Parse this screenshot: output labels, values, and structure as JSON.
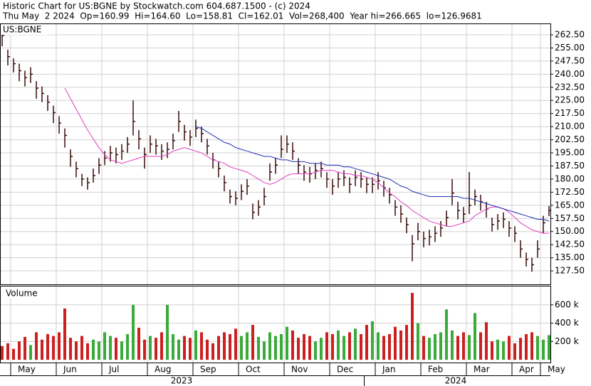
{
  "chart_data": [
    {
      "type": "ohlc",
      "title": "Historic Chart for US:BGNE by Stockwatch.com 604.687.1500 - (c) 2024",
      "subtitle": "Thu May  2 2024  Op=160.99  Hi=164.60  Lo=158.81  Cl=162.01  Vol=268,400  Year hi=266.665  lo=126.9681",
      "label": "US:BGNE",
      "color": "#3a0a0a",
      "categories": [
        null,
        null,
        "May",
        null,
        null,
        null,
        null,
        null,
        null,
        null,
        "Jun",
        null,
        null,
        null,
        null,
        null,
        null,
        null,
        "Jul",
        null,
        null,
        null,
        null,
        null,
        null,
        null,
        "Aug",
        null,
        null,
        null,
        null,
        null,
        null,
        null,
        "Sep",
        null,
        null,
        null,
        null,
        null,
        null,
        null,
        "Oct",
        null,
        null,
        null,
        null,
        null,
        null,
        null,
        "Nov",
        null,
        null,
        null,
        null,
        null,
        null,
        null,
        "Dec",
        null,
        null,
        null,
        null,
        null,
        null,
        null,
        "Jan",
        null,
        null,
        null,
        null,
        null,
        null,
        null,
        "Feb",
        null,
        null,
        null,
        null,
        null,
        null,
        null,
        "Mar",
        null,
        null,
        null,
        null,
        null,
        null,
        null,
        "Apr",
        null,
        null,
        null,
        null,
        "May",
        null
      ],
      "high": [
        266,
        254,
        249,
        246,
        242,
        244,
        236,
        233,
        228,
        222,
        216,
        209,
        197,
        190,
        183,
        181,
        186,
        192,
        196,
        199,
        198,
        200,
        204,
        225,
        208,
        198,
        205,
        203,
        200,
        201,
        206,
        219,
        211,
        208,
        214,
        210,
        203,
        195,
        190,
        182,
        174,
        173,
        177,
        180,
        166,
        168,
        175,
        189,
        192,
        205,
        205,
        201,
        192,
        188,
        187,
        189,
        190,
        184,
        180,
        184,
        185,
        181,
        185,
        184,
        181,
        181,
        184,
        179,
        175,
        168,
        165,
        158,
        148,
        155,
        150,
        151,
        153,
        156,
        162,
        180,
        167,
        164,
        184,
        174,
        171,
        167,
        158,
        160,
        161,
        156,
        153,
        145,
        138,
        135,
        145,
        159,
        164.6
      ],
      "low": [
        256,
        245,
        241,
        236,
        233,
        235,
        226,
        224,
        219,
        212,
        206,
        198,
        187,
        181,
        176,
        174,
        178,
        183,
        188,
        190,
        189,
        191,
        195,
        205,
        197,
        186,
        195,
        194,
        191,
        192,
        197,
        207,
        202,
        199,
        204,
        201,
        194,
        186,
        181,
        173,
        166,
        165,
        168,
        171,
        157,
        159,
        165,
        179,
        183,
        192,
        195,
        191,
        183,
        179,
        178,
        180,
        181,
        175,
        171,
        175,
        176,
        172,
        176,
        175,
        172,
        172,
        174,
        170,
        166,
        159,
        155,
        149,
        133,
        145,
        141,
        142,
        144,
        147,
        153,
        165,
        157,
        155,
        160,
        165,
        162,
        158,
        150,
        151,
        152,
        147,
        144,
        135,
        130,
        127,
        135,
        149,
        158.81
      ],
      "close": [
        262,
        250,
        246,
        242,
        238,
        240,
        232,
        229,
        224,
        218,
        212,
        205,
        193,
        186,
        180,
        178,
        182,
        188,
        192,
        195,
        194,
        196,
        200,
        213,
        203,
        194,
        200,
        199,
        196,
        197,
        202,
        213,
        207,
        204,
        209,
        206,
        199,
        191,
        186,
        178,
        170,
        169,
        173,
        176,
        161,
        164,
        170,
        184,
        188,
        197,
        200,
        196,
        188,
        184,
        183,
        185,
        186,
        180,
        176,
        180,
        181,
        177,
        181,
        180,
        177,
        177,
        179,
        175,
        171,
        164,
        160,
        154,
        143,
        150,
        146,
        147,
        149,
        152,
        158,
        172,
        162,
        160,
        165,
        170,
        167,
        163,
        154,
        156,
        157,
        152,
        149,
        140,
        134,
        131,
        140,
        155,
        162.01
      ],
      "lines": [
        {
          "color": "#e040c0",
          "values": [
            null,
            null,
            null,
            null,
            null,
            null,
            null,
            null,
            null,
            null,
            null,
            232,
            226,
            220,
            214,
            208,
            203,
            198,
            194,
            191,
            190,
            189,
            190,
            191,
            192,
            193,
            193,
            193,
            193,
            194,
            196,
            197,
            198,
            197,
            196,
            195,
            193,
            191,
            190,
            189,
            187,
            186,
            185,
            184,
            182,
            180,
            178,
            177,
            178,
            180,
            182,
            183,
            183,
            183,
            183,
            184,
            185,
            185,
            185,
            184,
            183,
            183,
            182,
            182,
            181,
            180,
            178,
            175,
            172,
            170,
            167,
            165,
            162,
            160,
            158,
            156,
            155,
            154,
            153,
            153,
            154,
            155,
            156,
            159,
            161,
            163,
            164,
            164,
            163,
            161,
            158,
            155,
            153,
            151,
            150,
            149,
            149
          ]
        },
        {
          "color": "#2030b0",
          "values": [
            null,
            null,
            null,
            null,
            null,
            null,
            null,
            null,
            null,
            null,
            null,
            null,
            null,
            null,
            null,
            null,
            null,
            null,
            null,
            null,
            null,
            null,
            null,
            null,
            null,
            null,
            null,
            null,
            null,
            null,
            null,
            null,
            null,
            null,
            210,
            209,
            207,
            205,
            203,
            201,
            200,
            198,
            197,
            196,
            195,
            194,
            193,
            193,
            192,
            191,
            191,
            190,
            190,
            190,
            189,
            189,
            189,
            188,
            188,
            188,
            187,
            187,
            186,
            185,
            184,
            183,
            182,
            181,
            180,
            178,
            176,
            175,
            173,
            172,
            171,
            170,
            170,
            170,
            170,
            170,
            170,
            169,
            169,
            168,
            167,
            166,
            165,
            164,
            163,
            162,
            161,
            160,
            159,
            158,
            157,
            157,
            156
          ]
        }
      ],
      "ylim": [
        119.8,
        268.6
      ],
      "yticks": [
        {
          "value": 127.5,
          "label": "127.50"
        },
        {
          "value": 135,
          "label": "135.00"
        },
        {
          "value": 142.5,
          "label": "142.50"
        },
        {
          "value": 150,
          "label": "150.00"
        },
        {
          "value": 157.5,
          "label": "157.50"
        },
        {
          "value": 165,
          "label": "165.00"
        },
        {
          "value": 172.5,
          "label": "172.50"
        },
        {
          "value": 180,
          "label": "180.00"
        },
        {
          "value": 187.5,
          "label": "187.50"
        },
        {
          "value": 195,
          "label": "195.00"
        },
        {
          "value": 202.5,
          "label": "202.50"
        },
        {
          "value": 210,
          "label": "210.00"
        },
        {
          "value": 217.5,
          "label": "217.50"
        },
        {
          "value": 225,
          "label": "225.00"
        },
        {
          "value": 232.5,
          "label": "232.50"
        },
        {
          "value": 240,
          "label": "240.00"
        },
        {
          "value": 247.5,
          "label": "247.50"
        },
        {
          "value": 255,
          "label": "255.00"
        },
        {
          "value": 262.5,
          "label": "262.50"
        }
      ],
      "grid": true
    },
    {
      "type": "bar",
      "label": "Volume",
      "up_color": "#3aaa3a",
      "down_color": "#cc2020",
      "values": [
        150000,
        180000,
        120000,
        200000,
        250000,
        160000,
        300000,
        220000,
        280000,
        260000,
        300000,
        560000,
        240000,
        200000,
        260000,
        180000,
        220000,
        200000,
        300000,
        260000,
        240000,
        200000,
        280000,
        600000,
        350000,
        220000,
        260000,
        240000,
        300000,
        600000,
        280000,
        220000,
        260000,
        240000,
        320000,
        300000,
        220000,
        180000,
        260000,
        300000,
        280000,
        340000,
        260000,
        300000,
        380000,
        250000,
        200000,
        300000,
        260000,
        280000,
        360000,
        320000,
        240000,
        280000,
        260000,
        200000,
        240000,
        300000,
        280000,
        320000,
        260000,
        300000,
        340000,
        280000,
        380000,
        420000,
        300000,
        260000,
        280000,
        360000,
        320000,
        380000,
        730000,
        400000,
        260000,
        240000,
        280000,
        300000,
        550000,
        320000,
        260000,
        300000,
        270000,
        510000,
        300000,
        410000,
        200000,
        220000,
        200000,
        260000,
        180000,
        240000,
        280000,
        300000,
        260000,
        220000,
        268400
      ],
      "ylim": [
        -30000,
        800000
      ],
      "yticks": [
        {
          "value": 200000,
          "label": "200 k"
        },
        {
          "value": 400000,
          "label": "400 k"
        },
        {
          "value": 600000,
          "label": "600 k"
        }
      ],
      "years": [
        "2023",
        "2024"
      ],
      "grid": true
    }
  ]
}
